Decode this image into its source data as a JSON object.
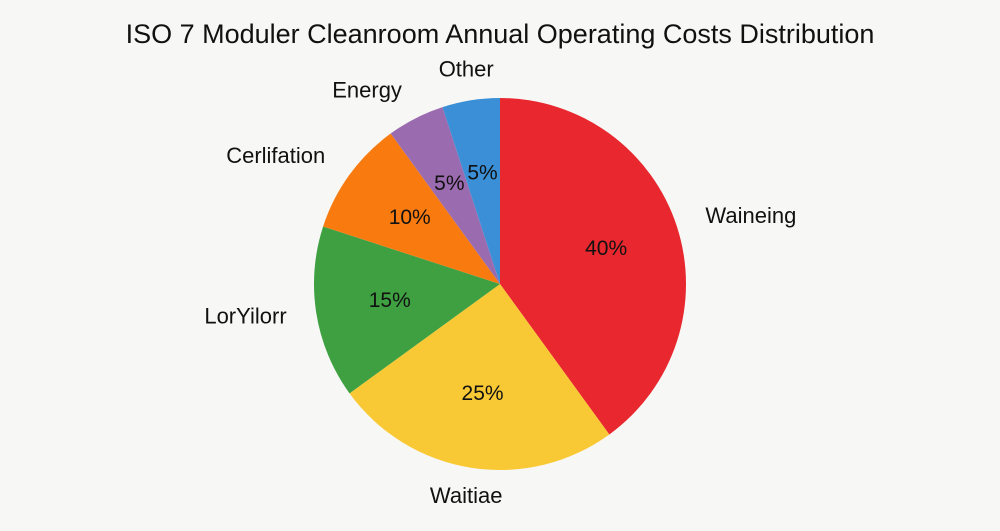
{
  "chart_data": {
    "type": "pie",
    "title": "ISO 7 Moduler Cleanroom Annual Operating Costs Distribution",
    "categories": [
      "Waineing",
      "Waitiae",
      "LorYilorr",
      "Cerlifation",
      "Energy",
      "Other"
    ],
    "values": [
      40,
      25,
      15,
      10,
      5,
      5
    ],
    "value_labels": [
      "40%",
      "25%",
      "15%",
      "10%",
      "5%",
      "5%"
    ],
    "colors": [
      "#e8282e",
      "#f9c935",
      "#3ea040",
      "#f97b10",
      "#9b6bb0",
      "#3a8fd6"
    ]
  }
}
